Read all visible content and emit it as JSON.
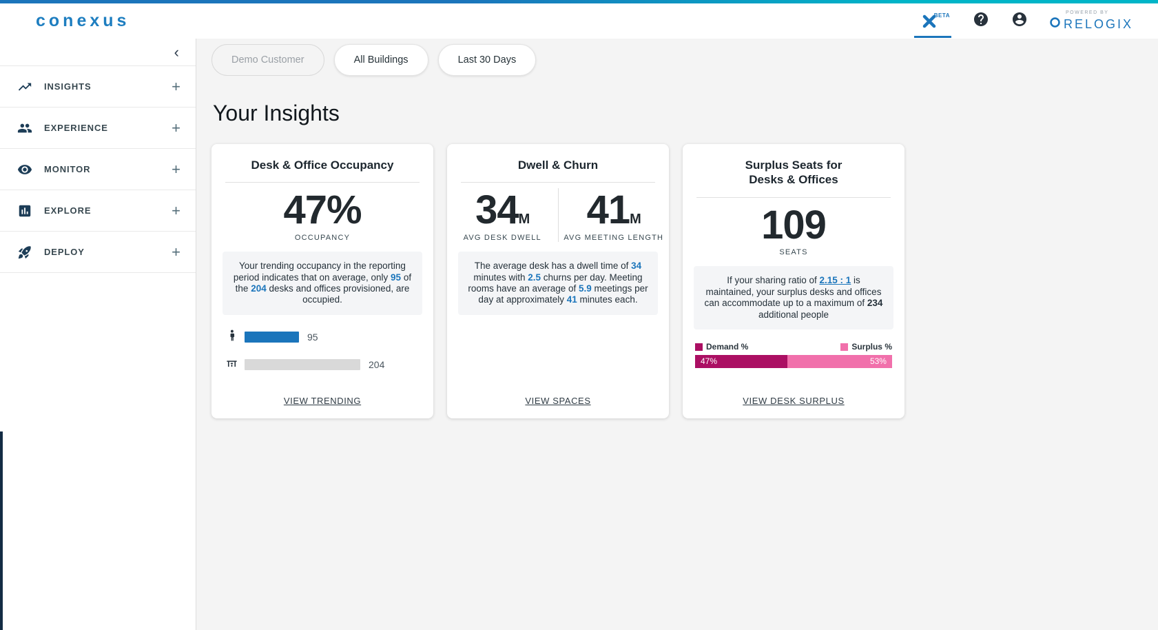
{
  "theme": {
    "accent_blue": "#1b75bb",
    "topbar_gradient_left": "#1b75bb",
    "topbar_gradient_right": "#00b5c8",
    "demand_color": "#ab0f63",
    "surplus_color": "#f170ab",
    "bar_blue": "#1b75bb",
    "bar_gray": "#d9d9d9"
  },
  "header": {
    "logo": "conexus",
    "beta_label": "BETA",
    "powered_by": "POWERED BY",
    "brand": "RELOGIX"
  },
  "sidebar": {
    "collapse_icon": "‹",
    "expand_symbol": "+",
    "items": [
      {
        "label": "INSIGHTS"
      },
      {
        "label": "EXPERIENCE"
      },
      {
        "label": "MONITOR"
      },
      {
        "label": "EXPLORE"
      },
      {
        "label": "DEPLOY"
      }
    ]
  },
  "filters": [
    {
      "label": "Demo Customer",
      "state": "disabled"
    },
    {
      "label": "All Buildings",
      "state": "default"
    },
    {
      "label": "Last 30 Days",
      "state": "default"
    }
  ],
  "page_title": "Your Insights",
  "cards": {
    "occupancy": {
      "title": "Desk & Office Occupancy",
      "stat_value": "47%",
      "stat_label": "OCCUPANCY",
      "desc": {
        "t1": "Your trending occupancy in the reporting period indicates that on average, only ",
        "n1": "95",
        "t2": " of the ",
        "n2": "204",
        "t3": " desks and offices provisioned, are occupied."
      },
      "occupied_value": "95",
      "total_value": "204",
      "occupied_pct": 47,
      "link": "VIEW TRENDING"
    },
    "dwell": {
      "title": "Dwell & Churn",
      "stats": [
        {
          "value": "34",
          "unit": "M",
          "label": "AVG DESK DWELL"
        },
        {
          "value": "41",
          "unit": "M",
          "label": "AVG MEETING LENGTH"
        }
      ],
      "desc": {
        "t1": "The average desk has a dwell time of ",
        "n1": "34",
        "t2": " minutes with ",
        "n2": "2.5",
        "t3": " churns per day. Meeting rooms have an average of ",
        "n3": "5.9",
        "t4": " meetings per day at approximately ",
        "n4": "41",
        "t5": " minutes each."
      },
      "link": "VIEW SPACES"
    },
    "surplus": {
      "title_line1": "Surplus Seats for",
      "title_line2": "Desks & Offices",
      "stat_value": "109",
      "stat_label": "SEATS",
      "desc": {
        "t1": "If your sharing ratio of ",
        "ratio": "2.15 : 1",
        "t2": " is maintained, your surplus desks and offices can accommodate up to a maximum of ",
        "n1": "234",
        "t3": " additional people"
      },
      "legend": [
        {
          "label": "Demand %"
        },
        {
          "label": "Surplus %"
        }
      ],
      "demand_pct": 47,
      "surplus_pct": 53,
      "demand_pct_label": "47%",
      "surplus_pct_label": "53%",
      "link": "VIEW DESK SURPLUS"
    }
  }
}
